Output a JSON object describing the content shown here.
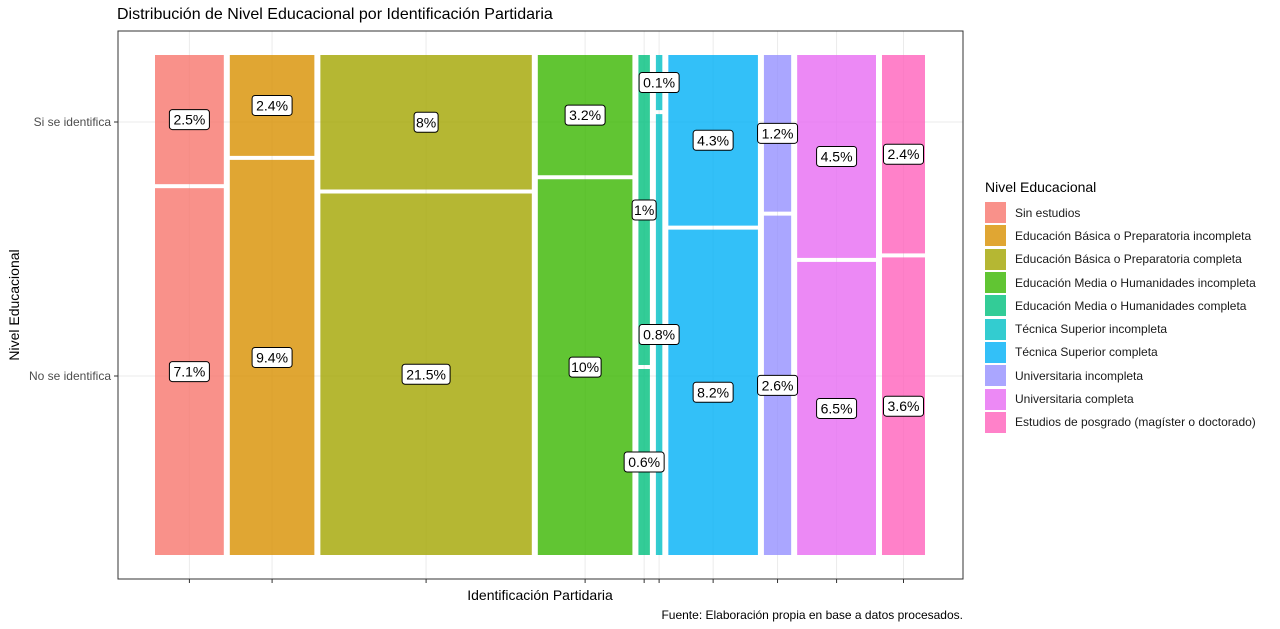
{
  "chart_data": {
    "type": "mosaic",
    "title": "Distribución de Nivel Educacional por Identificación Partidaria",
    "xlabel": "Identificación Partidaria",
    "ylabel": "Nivel Educacional",
    "yticks": [
      "Si se identifica",
      "No se identifica"
    ],
    "caption": "Fuente: Elaboración propia en base a datos procesados.",
    "legend_title": "Nivel Educacional",
    "legend_position": "right",
    "grid": true,
    "categories": [
      "Sin estudios",
      "Educación Básica o Preparatoria incompleta",
      "Educación Básica o Preparatoria completa",
      "Educación Media o Humanidades incompleta",
      "Educación Media o Humanidades completa",
      "Técnica Superior incompleta",
      "Técnica Superior completa",
      "Universitaria incompleta",
      "Universitaria completa",
      "Estudios de posgrado (magíster o doctorado)"
    ],
    "colors": [
      "#F8766D",
      "#D89000",
      "#A3A500",
      "#39B600",
      "#00BF7D",
      "#00BFC4",
      "#00B0F6",
      "#9590FF",
      "#E76BF3",
      "#FF62BC"
    ],
    "series": [
      {
        "name": "Si se identifica",
        "values": [
          2.5,
          2.4,
          8,
          3.2,
          1,
          0.1,
          4.3,
          1.2,
          4.5,
          2.4
        ]
      },
      {
        "name": "No se identifica",
        "values": [
          7.1,
          9.4,
          21.5,
          10,
          0.6,
          0.8,
          8.2,
          2.6,
          6.5,
          3.6
        ]
      }
    ],
    "labels": {
      "si": [
        "2.5%",
        "2.4%",
        "8%",
        "3.2%",
        "1%",
        "0.1%",
        "4.3%",
        "1.2%",
        "4.5%",
        "2.4%"
      ],
      "no": [
        "7.1%",
        "9.4%",
        "21.5%",
        "10%",
        "0.6%",
        "0.8%",
        "8.2%",
        "2.6%",
        "6.5%",
        "3.6%"
      ]
    }
  }
}
